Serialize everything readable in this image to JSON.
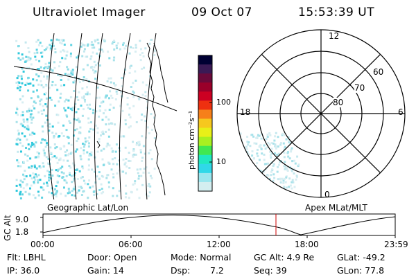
{
  "header": {
    "title": "Ultraviolet Imager",
    "date": "09 Oct 07",
    "time": "15:53:39 UT"
  },
  "colorbar": {
    "unit_label": "photon cm⁻²s⁻¹",
    "ticks": [
      "100",
      "10"
    ],
    "colors": [
      "#000033",
      "#3a1a55",
      "#6a0a3a",
      "#9a002a",
      "#cc0022",
      "#ee3010",
      "#f6801a",
      "#f6c81e",
      "#e8f018",
      "#a8f020",
      "#40e850",
      "#20e8c0",
      "#30d8e8",
      "#9ae6ee",
      "#d4eef0"
    ]
  },
  "polar_plot": {
    "labels": {
      "noon": "12",
      "midnight": "0",
      "dusk": "18",
      "dawn": "6"
    },
    "lat_labels": [
      "60",
      "70",
      "80"
    ]
  },
  "orbit_panel": {
    "left_label": "Geographic Lat/Lon",
    "right_label": "Apex MLat/MLT",
    "axis_title": "GC Alt",
    "y_ticks": [
      "9.0",
      "1.8"
    ],
    "x_ticks": [
      "00:00",
      "06:00",
      "12:00",
      "18:00",
      "23:59"
    ],
    "current_time_color": "#cc0000"
  },
  "info": {
    "flt": "Flt: LBHL",
    "ip": "IP: 36.0",
    "door": "Door: Open",
    "gain": "Gain: 14",
    "mode": "Mode: Normal",
    "dsp_label": "Dsp:",
    "dsp_value": "7.2",
    "gc_alt": "GC Alt: 4.9 Re",
    "seq": "Seq: 39",
    "glat": "GLat: -49.2",
    "glon": "GLon: 77.8"
  }
}
